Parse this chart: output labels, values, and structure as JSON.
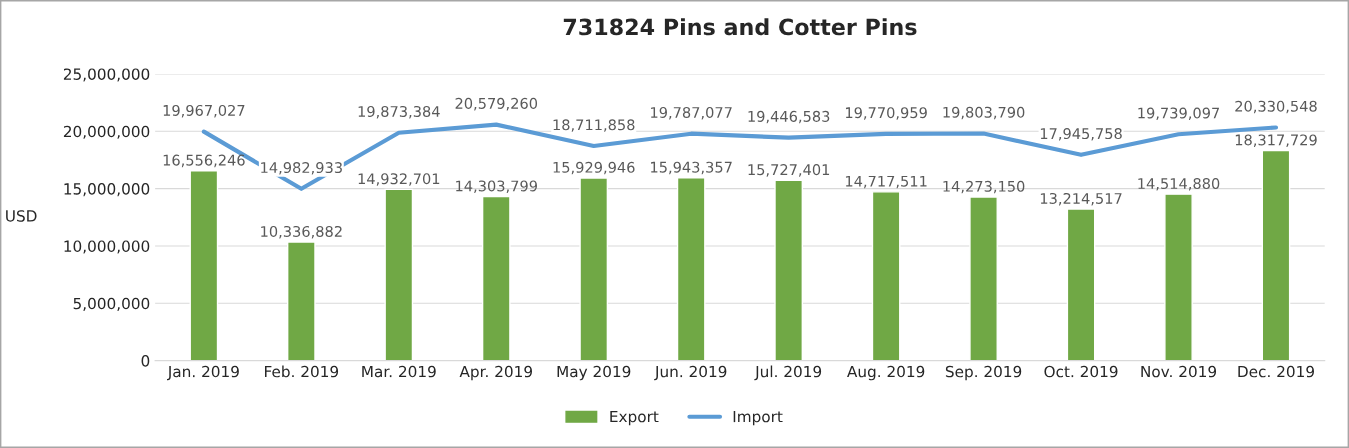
{
  "chart_data": {
    "type": "bar",
    "title": "731824 Pins and Cotter Pins",
    "ylabel": "USD",
    "categories": [
      "Jan. 2019",
      "Feb. 2019",
      "Mar. 2019",
      "Apr. 2019",
      "May 2019",
      "Jun. 2019",
      "Jul. 2019",
      "Aug. 2019",
      "Sep. 2019",
      "Oct. 2019",
      "Nov. 2019",
      "Dec. 2019"
    ],
    "series": [
      {
        "name": "Export",
        "color": "#70a845",
        "values": [
          16556246,
          10336882,
          14932701,
          14303799,
          15929946,
          15943357,
          15727401,
          14717511,
          14273150,
          13214517,
          14514880,
          18317729
        ],
        "value_labels": [
          "16,556,246",
          "10,336,882",
          "14,932,701",
          "14,303,799",
          "15,929,946",
          "15,943,357",
          "15,727,401",
          "14,717,511",
          "14,273,150",
          "13,214,517",
          "14,514,880",
          "18,317,729"
        ]
      },
      {
        "name": "Import",
        "type": "line",
        "color": "#5b9bd5",
        "values": [
          19967027,
          14982933,
          19873384,
          20579260,
          18711858,
          19787077,
          19446583,
          19770959,
          19803790,
          17945758,
          19739097,
          20330548
        ],
        "value_labels": [
          "19,967,027",
          "14,982,933",
          "19,873,384",
          "20,579,260",
          "18,711,858",
          "19,787,077",
          "19,446,583",
          "19,770,959",
          "19,803,790",
          "17,945,758",
          "19,739,097",
          "20,330,548"
        ]
      }
    ],
    "ylim": [
      0,
      25000000
    ],
    "yticks": [
      0,
      {
        "value": 5000000,
        "label": "5,000,000"
      },
      {
        "value": 10000000,
        "label": "10,000,000"
      },
      {
        "value": 15000000,
        "label": "15,000,000"
      },
      {
        "value": 20000000,
        "label": "20,000,000"
      },
      {
        "value": 25000000,
        "label": "25,000,000"
      }
    ],
    "grid": "y",
    "legend": "bottom",
    "marker": "none",
    "line_style": "solid"
  }
}
